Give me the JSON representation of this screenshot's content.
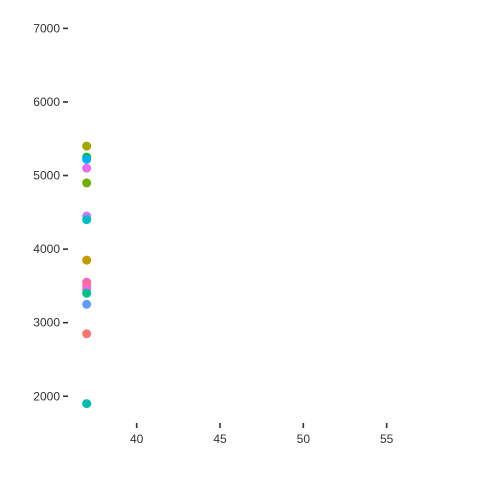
{
  "chart_data": {
    "type": "scatter",
    "title": "",
    "xlabel": "",
    "ylabel": "",
    "xlim": [
      36,
      60
    ],
    "ylim": [
      1650,
      7250
    ],
    "x_ticks": [
      40,
      45,
      50,
      55
    ],
    "y_ticks": [
      2000,
      3000,
      4000,
      5000,
      6000,
      7000
    ],
    "x_tick_labels": [
      "40",
      "45",
      "50",
      "55"
    ],
    "y_tick_labels": [
      "2000",
      "3000",
      "4000",
      "5000",
      "6000",
      "7000"
    ],
    "grid": false,
    "legend": "none",
    "points": [
      {
        "x": 37,
        "y": 5400,
        "color": "#A3A500"
      },
      {
        "x": 37,
        "y": 5250,
        "color": "#00BA38"
      },
      {
        "x": 37,
        "y": 5220,
        "color": "#00B0F6"
      },
      {
        "x": 37,
        "y": 5100,
        "color": "#E76BF3"
      },
      {
        "x": 37,
        "y": 4900,
        "color": "#6BB100"
      },
      {
        "x": 37,
        "y": 4450,
        "color": "#C77CFF"
      },
      {
        "x": 37,
        "y": 4400,
        "color": "#00BFC4"
      },
      {
        "x": 37,
        "y": 3850,
        "color": "#C49A00"
      },
      {
        "x": 37,
        "y": 3550,
        "color": "#FF62BC"
      },
      {
        "x": 37,
        "y": 3500,
        "color": "#FF6C91"
      },
      {
        "x": 37,
        "y": 3450,
        "color": "#ED68ED"
      },
      {
        "x": 37,
        "y": 3400,
        "color": "#00C08B"
      },
      {
        "x": 37,
        "y": 3250,
        "color": "#619CFF"
      },
      {
        "x": 37,
        "y": 2850,
        "color": "#F8766D"
      },
      {
        "x": 37,
        "y": 1900,
        "color": "#00BFB2"
      }
    ]
  }
}
